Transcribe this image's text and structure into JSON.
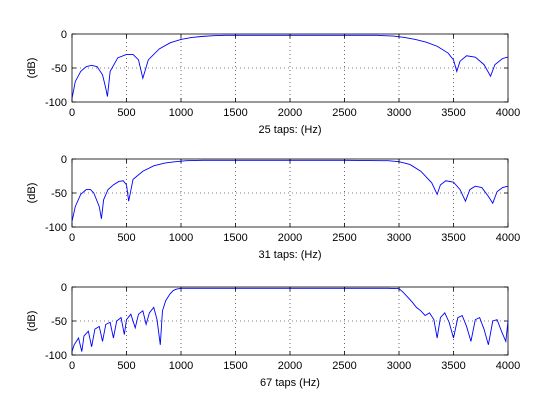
{
  "chart_data": [
    {
      "type": "line",
      "title": "",
      "xlabel": "25 taps: (Hz)",
      "ylabel": "(dB)",
      "xlim": [
        0,
        4000
      ],
      "ylim": [
        -100,
        0
      ],
      "xticks": [
        0,
        500,
        1000,
        1500,
        2000,
        2500,
        3000,
        3500,
        4000
      ],
      "yticks": [
        0,
        -50,
        -100
      ],
      "grid": true,
      "series": [
        {
          "color": "#0000ff",
          "x": [
            0,
            30,
            80,
            130,
            180,
            230,
            280,
            310,
            325,
            350,
            420,
            500,
            560,
            610,
            650,
            700,
            800,
            900,
            1000,
            1100,
            1200,
            1300,
            1400,
            1500,
            2000,
            2500,
            2800,
            2950,
            3050,
            3150,
            3250,
            3350,
            3450,
            3500,
            3530,
            3560,
            3620,
            3700,
            3780,
            3840,
            3880,
            3950,
            4000
          ],
          "y": [
            -95,
            -70,
            -55,
            -48,
            -46,
            -48,
            -60,
            -80,
            -92,
            -55,
            -35,
            -30,
            -30,
            -38,
            -65,
            -38,
            -22,
            -13,
            -8,
            -5,
            -3.5,
            -2.5,
            -2,
            -2,
            -2,
            -2,
            -2,
            -3,
            -5,
            -8,
            -12,
            -18,
            -28,
            -38,
            -55,
            -40,
            -32,
            -34,
            -45,
            -62,
            -45,
            -36,
            -34
          ]
        }
      ]
    },
    {
      "type": "line",
      "title": "",
      "xlabel": "31 taps: (Hz)",
      "ylabel": "(dB)",
      "xlim": [
        0,
        4000
      ],
      "ylim": [
        -100,
        0
      ],
      "xticks": [
        0,
        500,
        1000,
        1500,
        2000,
        2500,
        3000,
        3500,
        4000
      ],
      "yticks": [
        0,
        -50,
        -100
      ],
      "grid": true,
      "series": [
        {
          "color": "#0000ff",
          "x": [
            0,
            30,
            80,
            130,
            170,
            200,
            250,
            270,
            290,
            330,
            380,
            430,
            470,
            500,
            520,
            560,
            650,
            750,
            850,
            950,
            1050,
            1200,
            1500,
            2000,
            2500,
            2900,
            3000,
            3100,
            3200,
            3300,
            3350,
            3380,
            3430,
            3500,
            3560,
            3610,
            3650,
            3700,
            3760,
            3820,
            3860,
            3900,
            3950,
            4000
          ],
          "y": [
            -92,
            -70,
            -52,
            -45,
            -45,
            -50,
            -70,
            -88,
            -60,
            -45,
            -38,
            -33,
            -32,
            -38,
            -62,
            -30,
            -18,
            -10,
            -6,
            -4,
            -2.5,
            -2,
            -2,
            -2,
            -2,
            -2.5,
            -4,
            -8,
            -18,
            -35,
            -52,
            -38,
            -32,
            -34,
            -45,
            -62,
            -45,
            -40,
            -42,
            -55,
            -65,
            -48,
            -42,
            -40
          ]
        }
      ]
    },
    {
      "type": "line",
      "title": "",
      "xlabel": "67 taps (Hz)",
      "ylabel": "(dB)",
      "xlim": [
        0,
        4000
      ],
      "ylim": [
        -100,
        0
      ],
      "xticks": [
        0,
        500,
        1000,
        1500,
        2000,
        2500,
        3000,
        3500,
        4000
      ],
      "yticks": [
        0,
        -50,
        -100
      ],
      "grid": true,
      "series": [
        {
          "color": "#0000ff",
          "x": [
            0,
            20,
            60,
            90,
            110,
            150,
            180,
            210,
            250,
            280,
            310,
            350,
            380,
            410,
            450,
            480,
            500,
            540,
            580,
            610,
            650,
            680,
            710,
            750,
            780,
            810,
            830,
            860,
            900,
            930,
            960,
            1000,
            1050,
            1200,
            1500,
            2000,
            2500,
            2900,
            3000,
            3040,
            3080,
            3120,
            3160,
            3200,
            3240,
            3280,
            3320,
            3350,
            3380,
            3420,
            3460,
            3500,
            3540,
            3580,
            3620,
            3660,
            3700,
            3740,
            3780,
            3820,
            3860,
            3900,
            3940,
            3980,
            4000
          ],
          "y": [
            -95,
            -85,
            -75,
            -95,
            -72,
            -65,
            -88,
            -62,
            -58,
            -80,
            -55,
            -52,
            -75,
            -50,
            -45,
            -70,
            -48,
            -40,
            -60,
            -40,
            -35,
            -55,
            -38,
            -30,
            -48,
            -85,
            -35,
            -20,
            -10,
            -5,
            -3,
            -2,
            -2,
            -2,
            -2,
            -2,
            -2,
            -2,
            -2.5,
            -8,
            -15,
            -22,
            -30,
            -35,
            -42,
            -38,
            -48,
            -75,
            -45,
            -38,
            -52,
            -75,
            -45,
            -42,
            -58,
            -80,
            -48,
            -45,
            -62,
            -85,
            -50,
            -48,
            -65,
            -80,
            -50
          ]
        }
      ]
    }
  ]
}
